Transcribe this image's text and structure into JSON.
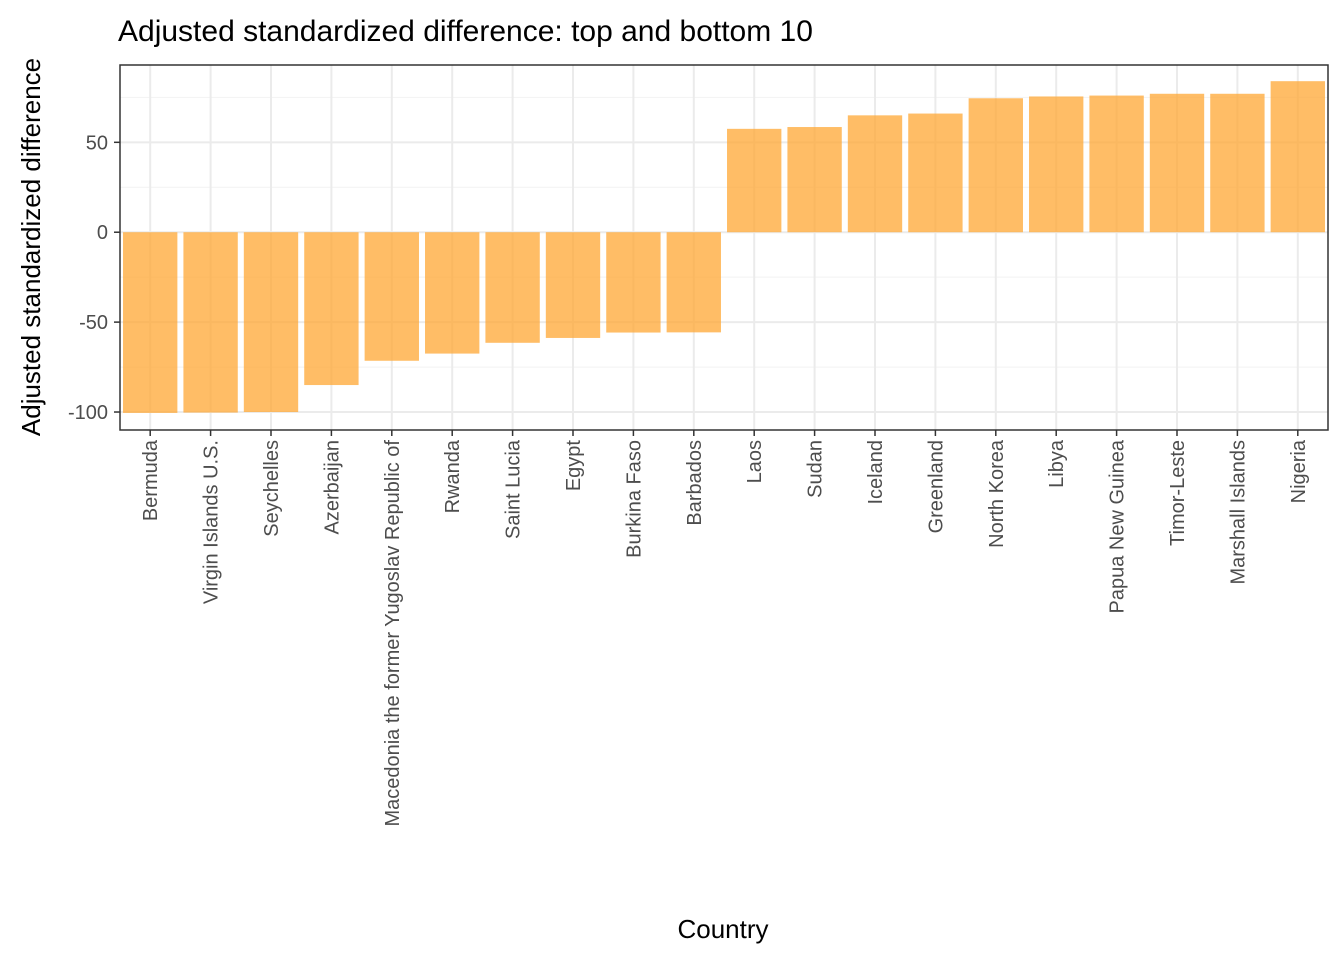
{
  "chart_data": {
    "type": "bar",
    "title": "Adjusted standardized difference: top and bottom 10",
    "xlabel": "Country",
    "ylabel": "Adjusted standardized difference",
    "categories": [
      "Bermuda",
      "Virgin Islands U.S.",
      "Seychelles",
      "Azerbaijan",
      "Macedonia the former Yugoslav Republic of",
      "Rwanda",
      "Saint Lucia",
      "Egypt",
      "Burkina Faso",
      "Barbados",
      "Laos",
      "Sudan",
      "Iceland",
      "Greenland",
      "North Korea",
      "Libya",
      "Papua New Guinea",
      "Timor-Leste",
      "Marshall Islands",
      "Nigeria"
    ],
    "values": [
      -100.5,
      -100.3,
      -100.0,
      -85.0,
      -71.5,
      -67.5,
      -61.5,
      -58.8,
      -55.8,
      -55.7,
      57.5,
      58.5,
      65.0,
      66.0,
      74.5,
      75.5,
      76.0,
      77.0,
      77.0,
      84.0
    ],
    "yticks": [
      -100,
      -50,
      0,
      50
    ],
    "ytick_labels": [
      "-100",
      "-50",
      "0",
      "50"
    ],
    "ylim": [
      -110,
      93
    ],
    "bar_color": "#FFA733",
    "grid": true,
    "legend": "none"
  }
}
